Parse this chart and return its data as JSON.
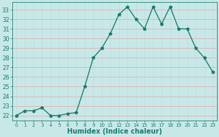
{
  "x": [
    0,
    1,
    2,
    3,
    4,
    5,
    6,
    7,
    8,
    9,
    10,
    11,
    12,
    13,
    14,
    15,
    16,
    17,
    18,
    19,
    20,
    21,
    22,
    23
  ],
  "y": [
    22,
    22.5,
    22.5,
    22.8,
    22,
    22,
    22.2,
    22.3,
    25,
    28,
    29,
    30.5,
    32.5,
    33.3,
    32,
    31,
    33.3,
    31.5,
    33.3,
    31,
    31,
    29,
    28,
    26.5
  ],
  "line_color": "#1a7a6e",
  "bg_color": "#c8e8e8",
  "grid_color_h": "#e8a0a0",
  "grid_color_v": "#c0d8d8",
  "xlabel": "Humidex (Indice chaleur)",
  "ylabel": "",
  "xlim": [
    -0.5,
    23.5
  ],
  "ylim": [
    21.5,
    33.8
  ],
  "yticks": [
    22,
    23,
    24,
    25,
    26,
    27,
    28,
    29,
    30,
    31,
    32,
    33
  ],
  "xticks": [
    0,
    1,
    2,
    3,
    4,
    5,
    6,
    7,
    8,
    9,
    10,
    11,
    12,
    13,
    14,
    15,
    16,
    17,
    18,
    19,
    20,
    21,
    22,
    23
  ],
  "marker": "*",
  "marker_size": 3.5,
  "line_width": 1.0,
  "tick_color": "#1a7a6e",
  "label_color": "#1a7a6e",
  "font_size_ticks": 6,
  "font_size_xlabel": 7
}
